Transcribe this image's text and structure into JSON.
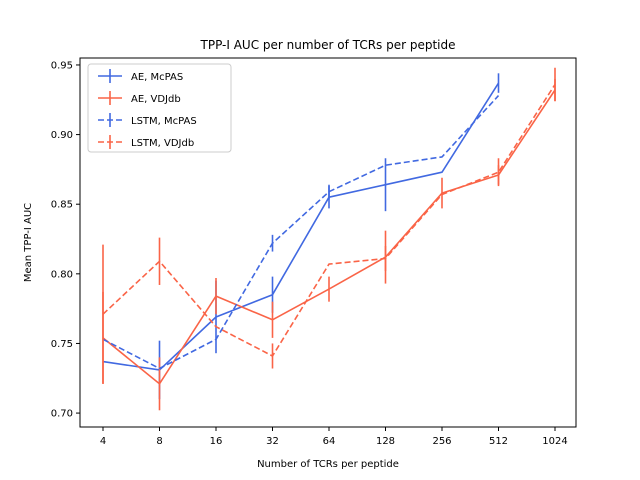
{
  "chart_data": {
    "type": "line",
    "title": "TPP-I AUC per number of TCRs per peptide",
    "xlabel": "Number of TCRs per peptide",
    "ylabel": "Mean TPP-I AUC",
    "categories": [
      "4",
      "8",
      "16",
      "32",
      "64",
      "128",
      "256",
      "512",
      "1024"
    ],
    "ylim": [
      0.69,
      0.955
    ],
    "yticks": [
      0.7,
      0.75,
      0.8,
      0.85,
      0.9,
      0.95
    ],
    "ytick_labels": [
      "0.70",
      "0.75",
      "0.80",
      "0.85",
      "0.90",
      "0.95"
    ],
    "grid": false,
    "legend_position": "top-left",
    "error_bars": true,
    "series": [
      {
        "name": "AE, McPAS",
        "color": "#4169e1",
        "dash": "solid",
        "values": [
          0.737,
          0.731,
          0.769,
          0.785,
          0.855,
          0.864,
          0.873,
          0.937,
          null
        ],
        "errors": [
          0.0,
          0.021,
          0.026,
          0.013,
          0.008,
          0.019,
          0.0,
          0.007,
          null
        ]
      },
      {
        "name": "AE, VDJdb",
        "color": "#fa6447",
        "dash": "solid",
        "values": [
          0.754,
          0.721,
          0.784,
          0.767,
          0.789,
          0.812,
          0.858,
          0.871,
          0.932
        ],
        "errors": [
          0.033,
          0.019,
          0.013,
          0.013,
          0.009,
          0.019,
          0.011,
          0.007,
          0.008
        ]
      },
      {
        "name": "LSTM, McPAS",
        "color": "#4169e1",
        "dash": "dashed",
        "values": [
          0.753,
          0.732,
          0.753,
          0.822,
          0.859,
          0.878,
          0.884,
          0.928,
          null
        ],
        "errors": [
          0.0,
          0.0,
          0.0,
          0.006,
          0.005,
          0.0,
          0.0,
          0.0,
          null
        ]
      },
      {
        "name": "LSTM, VDJdb",
        "color": "#fa6447",
        "dash": "dashed",
        "values": [
          0.771,
          0.809,
          0.762,
          0.741,
          0.807,
          0.811,
          0.857,
          0.873,
          0.936
        ],
        "errors": [
          0.05,
          0.017,
          0.0,
          0.009,
          0.0,
          0.009,
          0.0,
          0.01,
          0.012
        ]
      }
    ]
  }
}
